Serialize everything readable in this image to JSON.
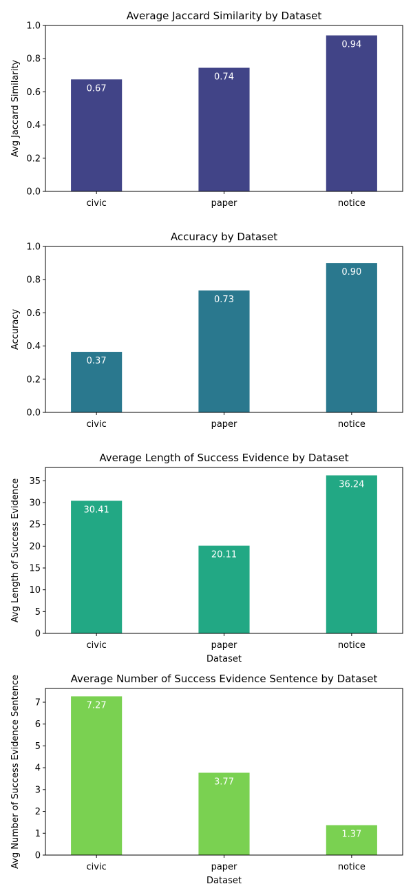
{
  "chart_data": [
    {
      "type": "bar",
      "title": "Average Jaccard Similarity by Dataset",
      "xlabel": "",
      "ylabel": "Avg Jaccard Similarity",
      "categories": [
        "civic",
        "paper",
        "notice"
      ],
      "values": [
        0.675,
        0.745,
        0.94
      ],
      "value_labels": [
        "0.67",
        "0.74",
        "0.94"
      ],
      "ylim": [
        0,
        1.0
      ],
      "yticks": [
        0.0,
        0.2,
        0.4,
        0.6,
        0.8,
        1.0
      ],
      "ytick_labels": [
        "0.0",
        "0.2",
        "0.4",
        "0.6",
        "0.8",
        "1.0"
      ],
      "color": "#414487",
      "grid": false,
      "legend": "none"
    },
    {
      "type": "bar",
      "title": "Accuracy by Dataset",
      "xlabel": "",
      "ylabel": "Accuracy",
      "categories": [
        "civic",
        "paper",
        "notice"
      ],
      "values": [
        0.365,
        0.735,
        0.9
      ],
      "value_labels": [
        "0.37",
        "0.73",
        "0.90"
      ],
      "ylim": [
        0,
        1.0
      ],
      "yticks": [
        0.0,
        0.2,
        0.4,
        0.6,
        0.8,
        1.0
      ],
      "ytick_labels": [
        "0.0",
        "0.2",
        "0.4",
        "0.6",
        "0.8",
        "1.0"
      ],
      "color": "#2a788e",
      "grid": false,
      "legend": "none"
    },
    {
      "type": "bar",
      "title": "Average Length of Success Evidence by Dataset",
      "xlabel": "Dataset",
      "ylabel": "Avg Length of Success Evidence",
      "categories": [
        "civic",
        "paper",
        "notice"
      ],
      "values": [
        30.41,
        20.11,
        36.24
      ],
      "value_labels": [
        "30.41",
        "20.11",
        "36.24"
      ],
      "ylim": [
        0,
        38.05
      ],
      "yticks": [
        0,
        5,
        10,
        15,
        20,
        25,
        30,
        35
      ],
      "ytick_labels": [
        "0",
        "5",
        "10",
        "15",
        "20",
        "25",
        "30",
        "35"
      ],
      "color": "#22a884",
      "grid": false,
      "legend": "none"
    },
    {
      "type": "bar",
      "title": "Average Number of Success Evidence Sentence by Dataset",
      "xlabel": "Dataset",
      "ylabel": "Avg Number of Success Evidence Sentence",
      "categories": [
        "civic",
        "paper",
        "notice"
      ],
      "values": [
        7.27,
        3.77,
        1.37
      ],
      "value_labels": [
        "7.27",
        "3.77",
        "1.37"
      ],
      "ylim": [
        0,
        7.63
      ],
      "yticks": [
        0,
        1,
        2,
        3,
        4,
        5,
        6,
        7
      ],
      "ytick_labels": [
        "0",
        "1",
        "2",
        "3",
        "4",
        "5",
        "6",
        "7"
      ],
      "color": "#7ad151",
      "grid": false,
      "legend": "none"
    }
  ]
}
